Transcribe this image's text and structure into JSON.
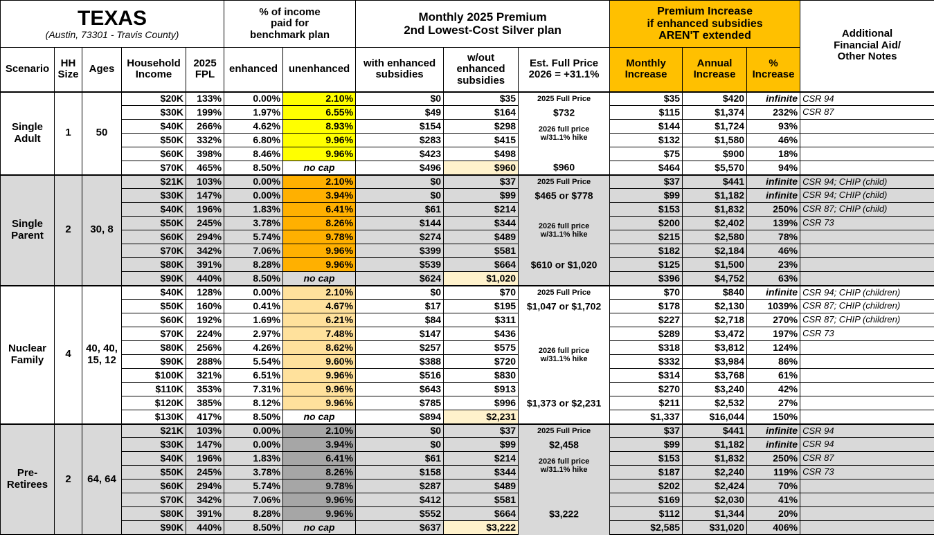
{
  "header": {
    "title": "TEXAS",
    "subtitle": "(Austin, 73301 - Travis County)",
    "income_group": "% of income\npaid for\nbenchmark plan",
    "premium_group": "Monthly 2025 Premium\n2nd Lowest-Cost Silver plan",
    "increase_group": "Premium Increase\nif enhanced subsidies\nAREN'T extended",
    "notes": "Additional\nFinancial Aid/\nOther Notes",
    "columns": [
      "Scenario",
      "HH\nSize",
      "Ages",
      "Household\nIncome",
      "2025\nFPL",
      "enhanced",
      "unenhanced",
      "with enhanced\nsubsidies",
      "w/out\nenhanced\nsubsidies",
      "Est. Full Price\n2026 = +31.1%",
      "Monthly\nIncrease",
      "Annual\nIncrease",
      "%\nIncrease"
    ]
  },
  "groups": [
    {
      "scenario": "Single\nAdult",
      "hh": "1",
      "ages": "50",
      "fill": "#ffffff",
      "highlight": "#ffff00",
      "rows": [
        [
          "$20K",
          "133%",
          "0.00%",
          "2.10%",
          "$0",
          "$35",
          "2025 Full Price",
          "$35",
          "$420",
          "infinite",
          "CSR 94"
        ],
        [
          "$30K",
          "199%",
          "1.97%",
          "6.55%",
          "$49",
          "$164",
          "$732",
          "$115",
          "$1,374",
          "232%",
          "CSR 87"
        ],
        [
          "$40K",
          "266%",
          "4.62%",
          "8.93%",
          "$154",
          "$298",
          "2026 full price\nw/31.1% hike",
          "$144",
          "$1,724",
          "93%",
          null
        ],
        [
          "$50K",
          "332%",
          "6.80%",
          "9.96%",
          "$283",
          "$415",
          null,
          "$132",
          "$1,580",
          "46%",
          null
        ],
        [
          "$60K",
          "398%",
          "8.46%",
          "9.96%",
          "$423",
          "$498",
          null,
          "$75",
          "$900",
          "18%",
          null
        ],
        [
          "$70K",
          "465%",
          "8.50%",
          "no cap",
          "$496",
          "$960",
          "$960",
          "$464",
          "$5,570",
          "94%",
          null
        ]
      ]
    },
    {
      "scenario": "Single\nParent",
      "hh": "2",
      "ages": "30, 8",
      "fill": "#d9d9d9",
      "highlight": "#ffb000",
      "rows": [
        [
          "$21K",
          "103%",
          "0.00%",
          "2.10%",
          "$0",
          "$37",
          "2025 Full Price",
          "$37",
          "$441",
          "infinite",
          "CSR 94; CHIP (child)"
        ],
        [
          "$30K",
          "147%",
          "0.00%",
          "3.94%",
          "$0",
          "$99",
          "$465 or $778",
          "$99",
          "$1,182",
          "infinite",
          "CSR 94; CHIP (child)"
        ],
        [
          "$40K",
          "196%",
          "1.83%",
          "6.41%",
          "$61",
          "$214",
          null,
          "$153",
          "$1,832",
          "250%",
          "CSR 87; CHIP (child)"
        ],
        [
          "$50K",
          "245%",
          "3.78%",
          "8.26%",
          "$144",
          "$344",
          "2026 full price\nw/31.1% hike",
          "$200",
          "$2,402",
          "139%",
          "CSR 73"
        ],
        [
          "$60K",
          "294%",
          "5.74%",
          "9.78%",
          "$274",
          "$489",
          null,
          "$215",
          "$2,580",
          "78%",
          null
        ],
        [
          "$70K",
          "342%",
          "7.06%",
          "9.96%",
          "$399",
          "$581",
          null,
          "$182",
          "$2,184",
          "46%",
          null
        ],
        [
          "$80K",
          "391%",
          "8.28%",
          "9.96%",
          "$539",
          "$664",
          "$610 or $1,020",
          "$125",
          "$1,500",
          "23%",
          null
        ],
        [
          "$90K",
          "440%",
          "8.50%",
          "no cap",
          "$624",
          "$1,020",
          null,
          "$396",
          "$4,752",
          "63%",
          null
        ]
      ]
    },
    {
      "scenario": "Nuclear\nFamily",
      "hh": "4",
      "ages": "40, 40,\n15, 12",
      "fill": "#ffffff",
      "highlight": "#ffe19c",
      "rows": [
        [
          "$40K",
          "128%",
          "0.00%",
          "2.10%",
          "$0",
          "$70",
          "2025 Full Price",
          "$70",
          "$840",
          "infinite",
          "CSR 94; CHIP (children)"
        ],
        [
          "$50K",
          "160%",
          "0.41%",
          "4.67%",
          "$17",
          "$195",
          "$1,047 or $1,702",
          "$178",
          "$2,130",
          "1039%",
          "CSR 87; CHIP (children)"
        ],
        [
          "$60K",
          "192%",
          "1.69%",
          "6.21%",
          "$84",
          "$311",
          null,
          "$227",
          "$2,718",
          "270%",
          "CSR 87; CHIP (children)"
        ],
        [
          "$70K",
          "224%",
          "2.97%",
          "7.48%",
          "$147",
          "$436",
          null,
          "$289",
          "$3,472",
          "197%",
          "CSR 73"
        ],
        [
          "$80K",
          "256%",
          "4.26%",
          "8.62%",
          "$257",
          "$575",
          "2026 full price\nw/31.1% hike",
          "$318",
          "$3,812",
          "124%",
          null
        ],
        [
          "$90K",
          "288%",
          "5.54%",
          "9.60%",
          "$388",
          "$720",
          null,
          "$332",
          "$3,984",
          "86%",
          null
        ],
        [
          "$100K",
          "321%",
          "6.51%",
          "9.96%",
          "$516",
          "$830",
          null,
          "$314",
          "$3,768",
          "61%",
          null
        ],
        [
          "$110K",
          "353%",
          "7.31%",
          "9.96%",
          "$643",
          "$913",
          null,
          "$270",
          "$3,240",
          "42%",
          null
        ],
        [
          "$120K",
          "385%",
          "8.12%",
          "9.96%",
          "$785",
          "$996",
          "$1,373 or $2,231",
          "$211",
          "$2,532",
          "27%",
          null
        ],
        [
          "$130K",
          "417%",
          "8.50%",
          "no cap",
          "$894",
          "$2,231",
          null,
          "$1,337",
          "$16,044",
          "150%",
          null
        ]
      ]
    },
    {
      "scenario": "Pre-\nRetirees",
      "hh": "2",
      "ages": "64, 64",
      "fill": "#d9d9d9",
      "highlight": "#a6a6a6",
      "rows": [
        [
          "$21K",
          "103%",
          "0.00%",
          "2.10%",
          "$0",
          "$37",
          "2025 Full Price",
          "$37",
          "$441",
          "infinite",
          "CSR 94"
        ],
        [
          "$30K",
          "147%",
          "0.00%",
          "3.94%",
          "$0",
          "$99",
          "$2,458",
          "$99",
          "$1,182",
          "infinite",
          "CSR 94"
        ],
        [
          "$40K",
          "196%",
          "1.83%",
          "6.41%",
          "$61",
          "$214",
          "2026 full price\nw/31.1% hike",
          "$153",
          "$1,832",
          "250%",
          "CSR 87"
        ],
        [
          "$50K",
          "245%",
          "3.78%",
          "8.26%",
          "$158",
          "$344",
          null,
          "$187",
          "$2,240",
          "119%",
          "CSR 73"
        ],
        [
          "$60K",
          "294%",
          "5.74%",
          "9.78%",
          "$287",
          "$489",
          null,
          "$202",
          "$2,424",
          "70%",
          null
        ],
        [
          "$70K",
          "342%",
          "7.06%",
          "9.96%",
          "$412",
          "$581",
          null,
          "$169",
          "$2,030",
          "41%",
          null
        ],
        [
          "$80K",
          "391%",
          "8.28%",
          "9.96%",
          "$552",
          "$664",
          "$3,222",
          "$112",
          "$1,344",
          "20%",
          null
        ],
        [
          "$90K",
          "440%",
          "8.50%",
          "no cap",
          "$637",
          "$3,222",
          null,
          "$2,585",
          "$31,020",
          "406%",
          null
        ]
      ]
    }
  ]
}
